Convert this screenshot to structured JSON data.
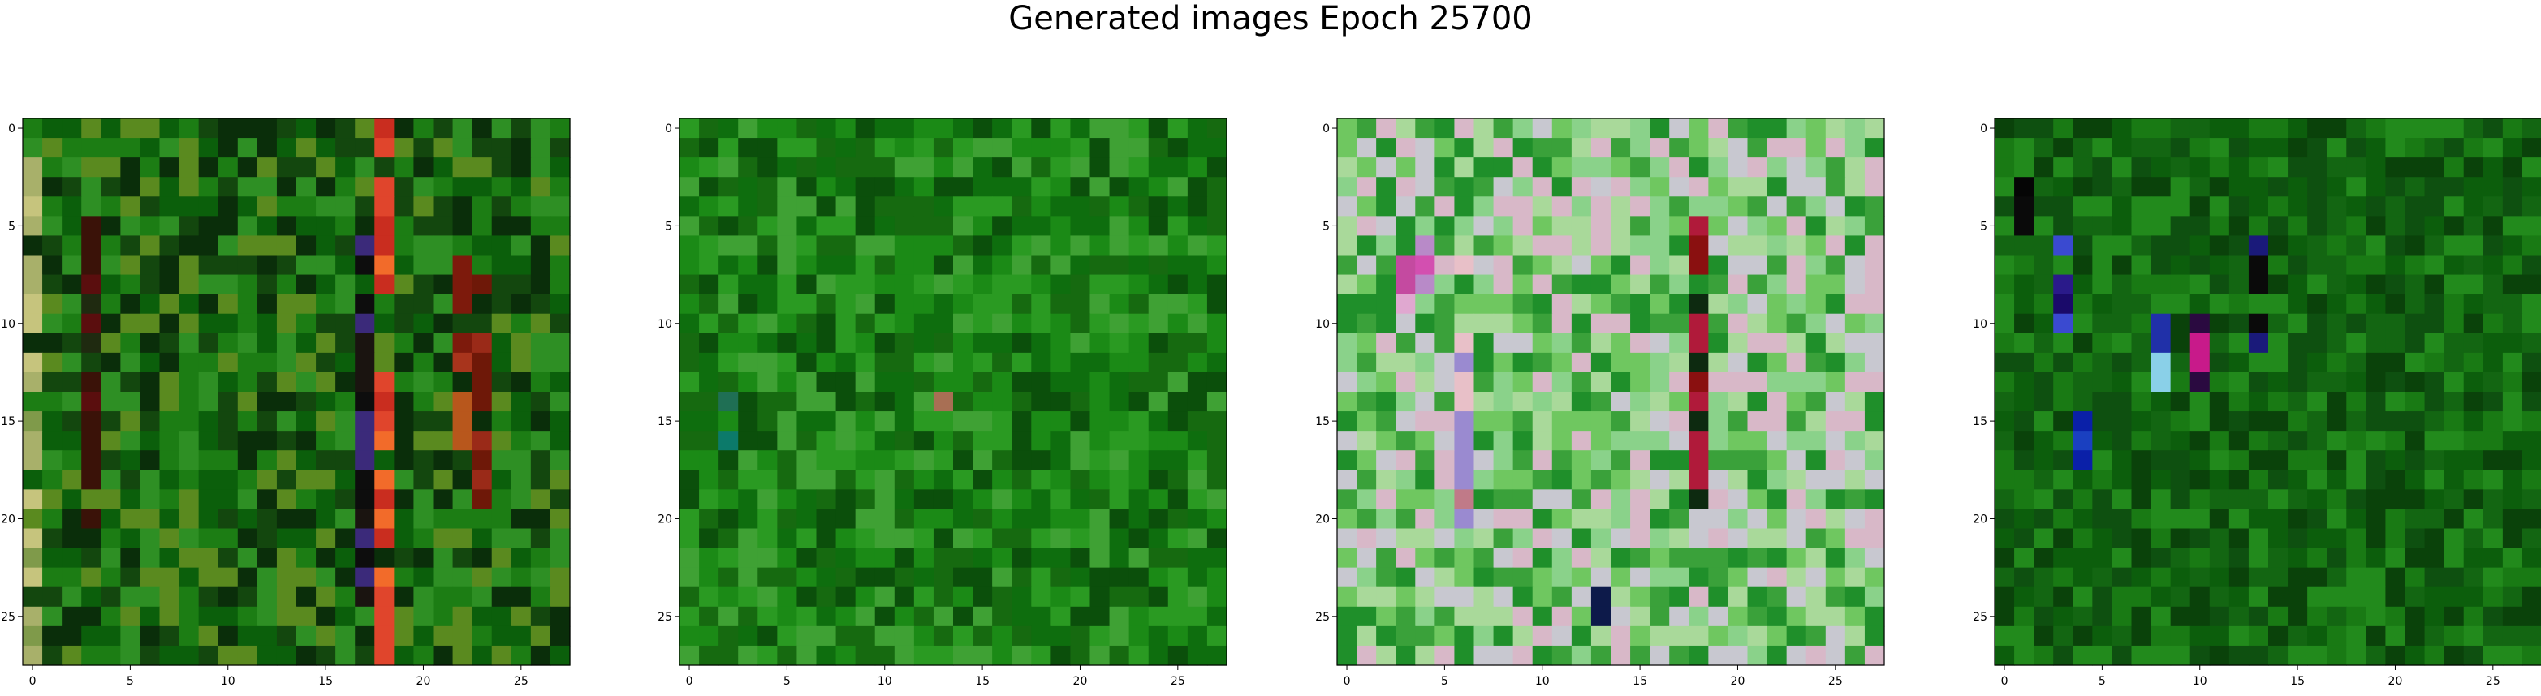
{
  "title": "Generated images Epoch 25700",
  "panels": [
    {
      "name": "generated-image-1",
      "palette": [
        "#0b5f0b",
        "#1c7d14",
        "#13470e",
        "#2e8f24",
        "#5a8a1f",
        "#0a2e0a"
      ],
      "accents": [
        {
          "col": 18,
          "rows": [
            0,
            27
          ],
          "colors": [
            "#e0452c",
            "#f26b2a",
            "#c92d1f"
          ]
        },
        {
          "col": 17,
          "rows": [
            6,
            24
          ],
          "colors": [
            "#1a1410",
            "#3b2a7a",
            "#0d0d0d"
          ]
        },
        {
          "col": 22,
          "rows": [
            7,
            20
          ],
          "colors": [
            "#a8341c",
            "#7d1a0c",
            "#b8571c"
          ]
        },
        {
          "col": 23,
          "rows": [
            8,
            19
          ],
          "colors": [
            "#9a2a18",
            "#6e1808",
            "#c0601e"
          ]
        },
        {
          "col": 0,
          "rows": [
            2,
            27
          ],
          "colors": [
            "#a8b06a",
            "#c6c47d",
            "#7f9a4a"
          ]
        },
        {
          "col": 3,
          "rows": [
            5,
            20
          ],
          "colors": [
            "#3a1208",
            "#5a0e0e",
            "#1f2a10"
          ]
        }
      ]
    },
    {
      "name": "generated-image-2",
      "palette": [
        "#0e6e0e",
        "#1b8a16",
        "#0b4f0b",
        "#2a9a22",
        "#166a10",
        "#3fa134"
      ],
      "accents": [
        {
          "col": 13,
          "rows": [
            13,
            14
          ],
          "colors": [
            "#a86f54"
          ]
        },
        {
          "col": 2,
          "rows": [
            14,
            16
          ],
          "colors": [
            "#1f6f54",
            "#0c7a6a"
          ]
        }
      ]
    },
    {
      "name": "generated-image-3",
      "palette": [
        "#6fc760",
        "#a9d99a",
        "#3aa13a",
        "#c8c8d0",
        "#8ad28a",
        "#1f8f2a",
        "#d8b8c8"
      ],
      "accents": [
        {
          "col": 4,
          "rows": [
            6,
            8
          ],
          "colors": [
            "#d34fb0",
            "#b88ac8"
          ]
        },
        {
          "col": 3,
          "rows": [
            7,
            9
          ],
          "colors": [
            "#c44aa0",
            "#e0a8d0"
          ]
        },
        {
          "col": 6,
          "rows": [
            6,
            22
          ],
          "colors": [
            "#c07a88",
            "#9a8ad0",
            "#e8c0c8"
          ]
        },
        {
          "col": 18,
          "rows": [
            5,
            19
          ],
          "colors": [
            "#b01a3a",
            "#0d2a10",
            "#8a1010"
          ]
        },
        {
          "col": 13,
          "rows": [
            24,
            25
          ],
          "colors": [
            "#1f3a8a",
            "#0d1a4a"
          ]
        }
      ]
    },
    {
      "name": "generated-image-4",
      "palette": [
        "#0c5e0c",
        "#197a14",
        "#0a420a",
        "#228a1c",
        "#136612",
        "#0e5010"
      ],
      "accents": [
        {
          "col": 1,
          "rows": [
            2,
            5
          ],
          "colors": [
            "#050505",
            "#0a0a0a"
          ]
        },
        {
          "col": 3,
          "rows": [
            6,
            10
          ],
          "colors": [
            "#2a1a8a",
            "#3a4ad0",
            "#1a0a6a"
          ]
        },
        {
          "col": 8,
          "rows": [
            10,
            14
          ],
          "colors": [
            "#2030a8",
            "#8ad0e8",
            "#1010a0"
          ]
        },
        {
          "col": 10,
          "rows": [
            10,
            13
          ],
          "colors": [
            "#c81a8a",
            "#e0e0f0",
            "#2a0a40"
          ]
        },
        {
          "col": 13,
          "rows": [
            6,
            13
          ],
          "colors": [
            "#1a1a7a",
            "#0a0a0a",
            "#e8e8f8",
            "#c8a8b0"
          ]
        },
        {
          "col": 4,
          "rows": [
            15,
            17
          ],
          "colors": [
            "#0a20a8",
            "#1a40c0"
          ]
        }
      ]
    }
  ],
  "axis": {
    "x_ticks": [
      "0",
      "5",
      "10",
      "15",
      "20",
      "25"
    ],
    "y_ticks": [
      "0",
      "5",
      "10",
      "15",
      "20",
      "25"
    ]
  }
}
